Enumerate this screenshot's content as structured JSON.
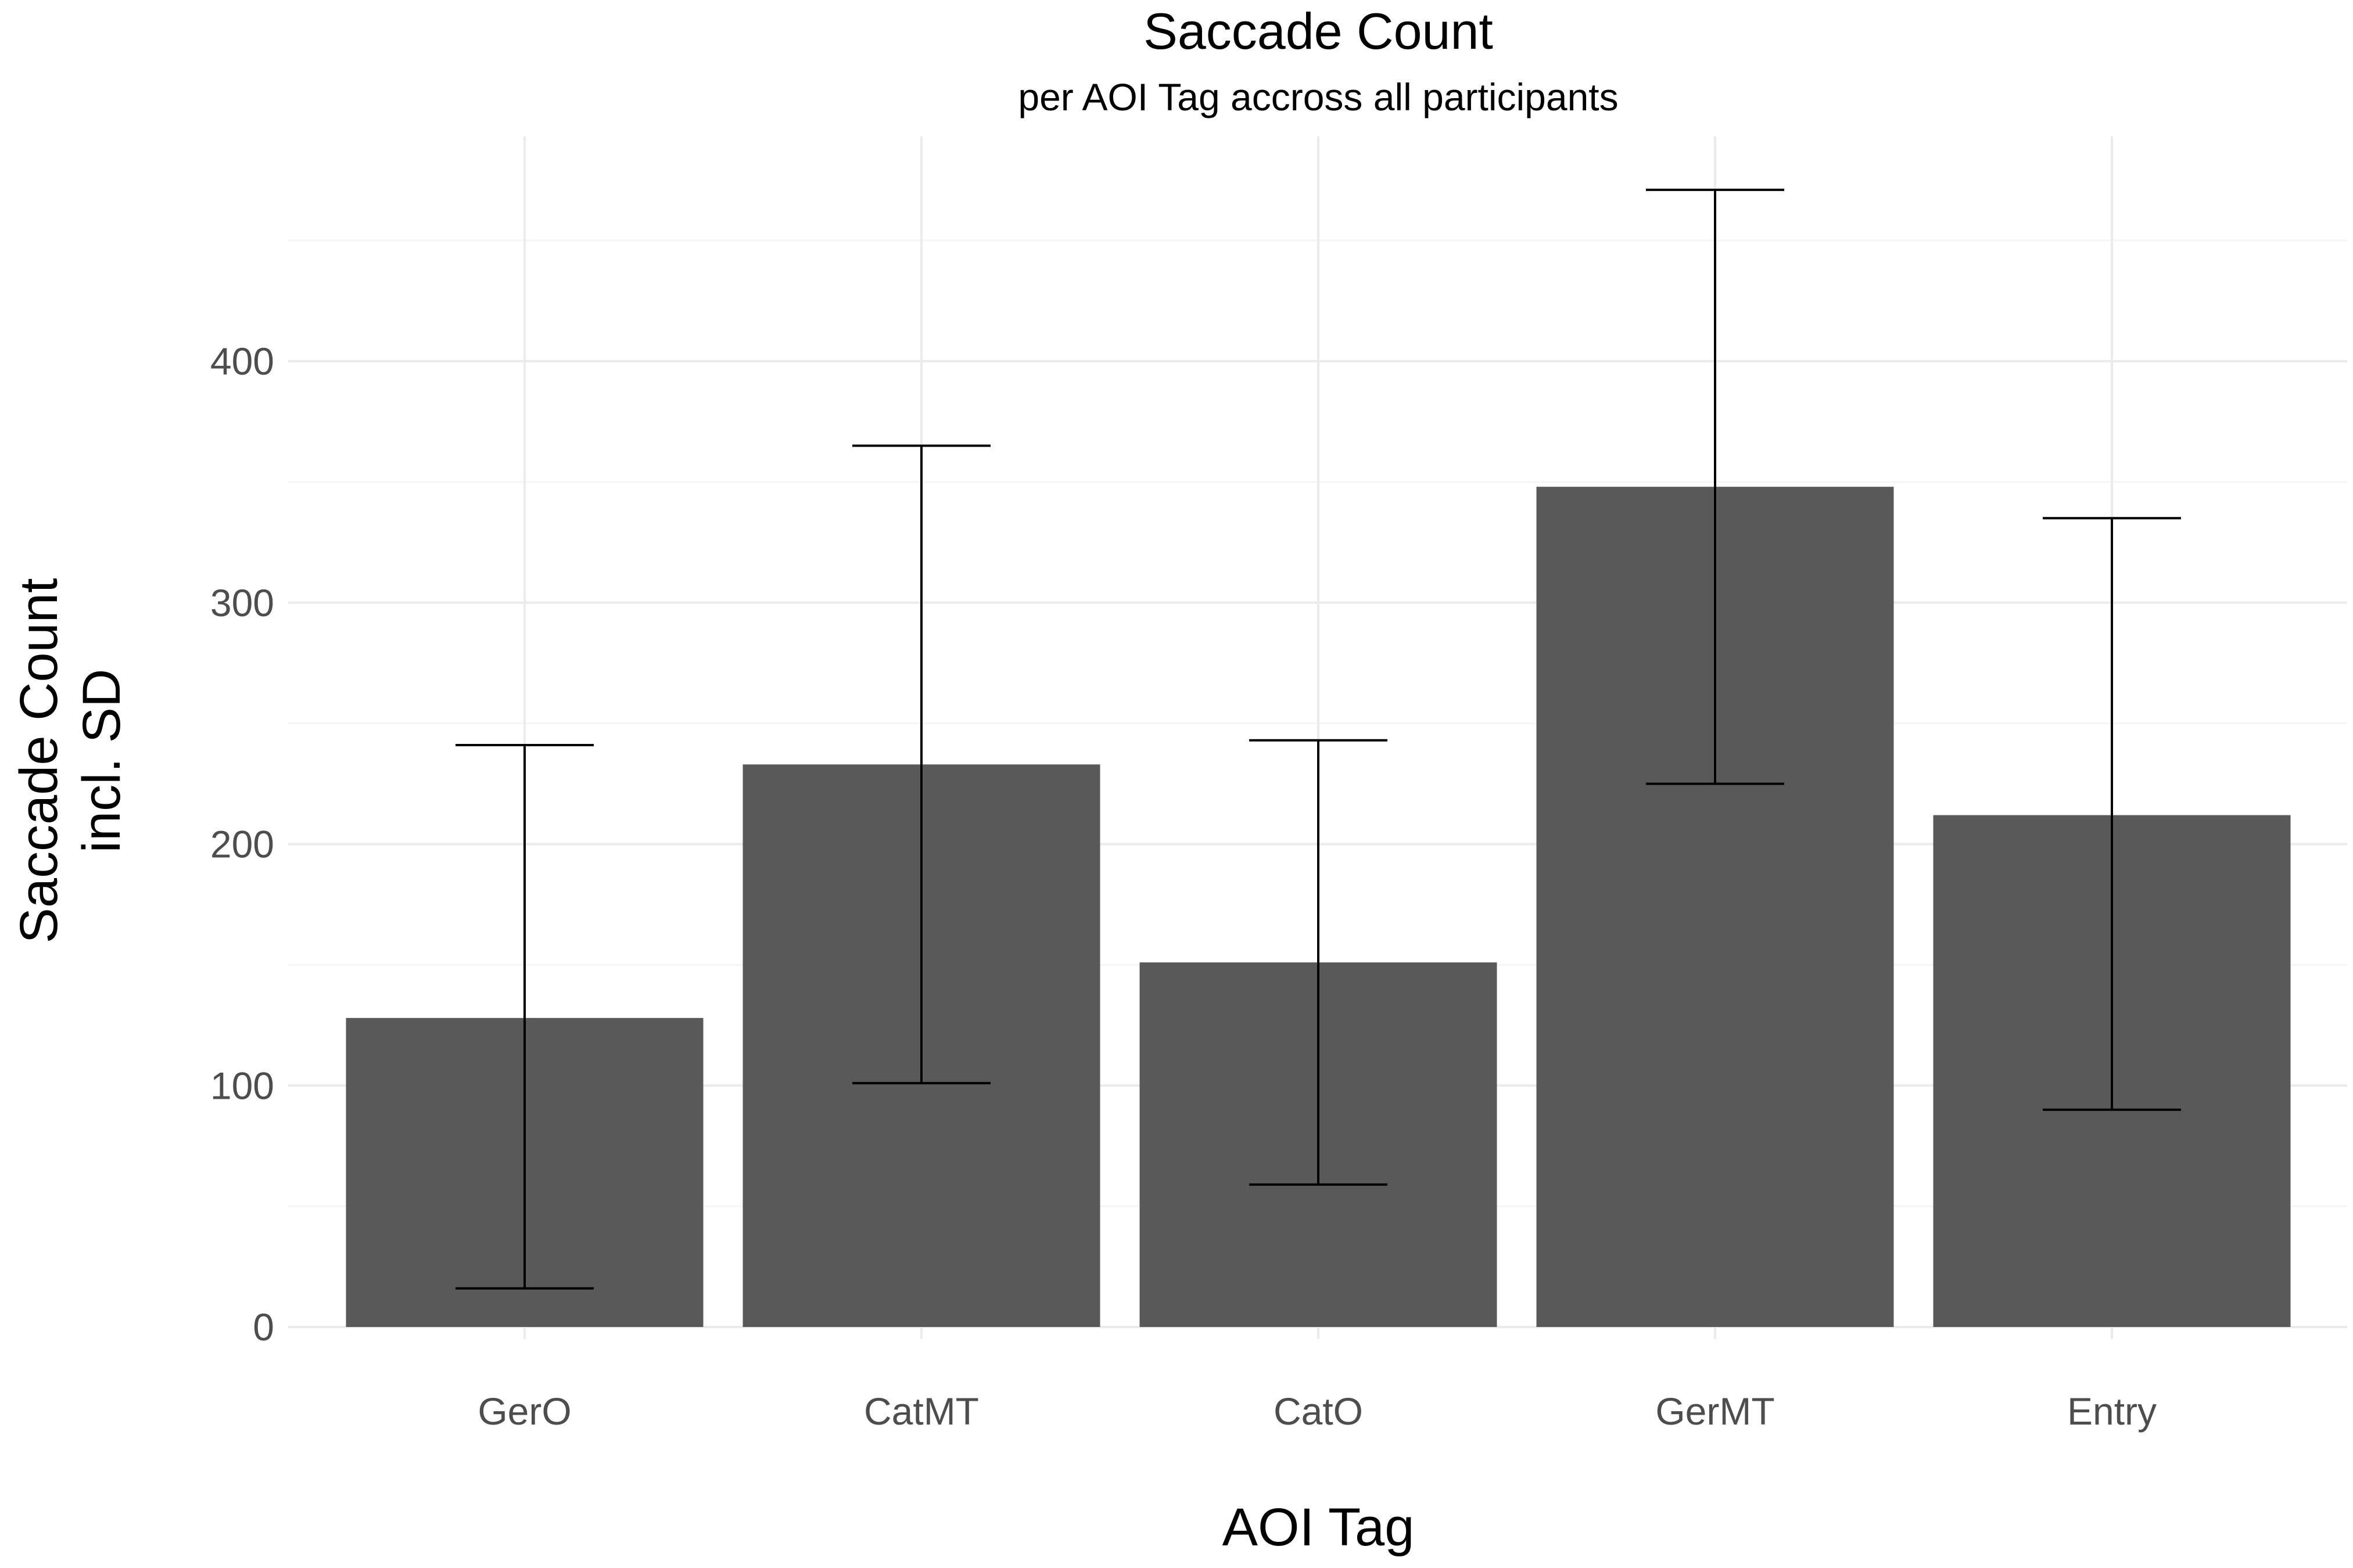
{
  "chart_data": {
    "type": "bar",
    "title": "Saccade Count",
    "subtitle": "per AOI Tag accross all participants",
    "xlabel": "AOI Tag",
    "ylabel_line1": "Saccade Count",
    "ylabel_line2": "incl. SD",
    "categories": [
      "GerO",
      "CatMT",
      "CatO",
      "GerMT",
      "Entry"
    ],
    "values": [
      128,
      233,
      151,
      348,
      212
    ],
    "error_low": [
      16,
      101,
      59,
      225,
      90
    ],
    "error_high": [
      241,
      365,
      243,
      471,
      335
    ],
    "ylim": [
      0,
      450
    ],
    "yticks": [
      0,
      100,
      200,
      300,
      400
    ],
    "grid": true,
    "legend": "none",
    "colors": {
      "bar": "#595959",
      "error_bar": "#000000",
      "grid_major": "#ebebeb",
      "grid_minor": "#f5f5f5"
    }
  }
}
